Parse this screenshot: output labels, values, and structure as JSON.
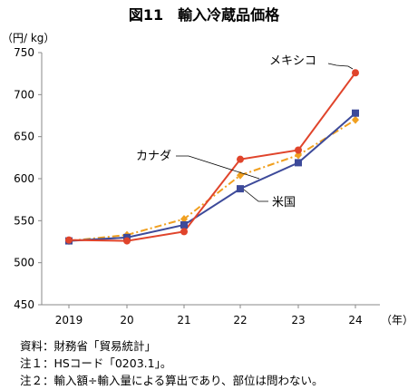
{
  "chart_data": {
    "type": "line",
    "title": "図11　輸入冷蔵品価格",
    "ylabel": "（円/ kg）",
    "xlabel": "（年）",
    "categories": [
      "2019",
      "20",
      "21",
      "22",
      "23",
      "24"
    ],
    "ylim": [
      450,
      750
    ],
    "yticks": [
      450,
      500,
      550,
      600,
      650,
      700,
      750
    ],
    "grid": false,
    "legend": "direct labels",
    "series": [
      {
        "name": "メキシコ",
        "color": "#e0442b",
        "marker": "circle",
        "dash": "",
        "values": [
          527,
          526,
          537,
          623,
          634,
          726
        ]
      },
      {
        "name": "米国",
        "color": "#3d4a9a",
        "marker": "square",
        "dash": "",
        "values": [
          526,
          530,
          545,
          588,
          619,
          678
        ]
      },
      {
        "name": "カナダ",
        "color": "#f0a020",
        "marker": "diamond",
        "dash": "8,3,2,3",
        "values": [
          526,
          533,
          552,
          604,
          628,
          670
        ]
      }
    ]
  },
  "notes": [
    "資料：財務省「貿易統計」",
    "注１：HSコード「0203.1」。",
    "注２：輸入額÷輸入量による算出であり、部位は問わない。"
  ]
}
